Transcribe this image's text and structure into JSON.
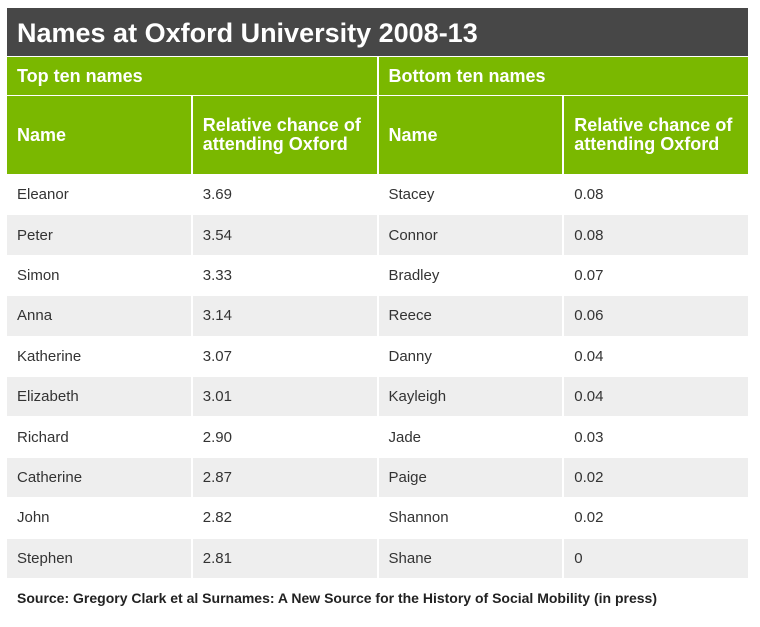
{
  "title": "Names at Oxford University 2008-13",
  "groups": [
    "Top ten names",
    "Bottom ten names"
  ],
  "columns": [
    "Name",
    "Relative chance of attending Oxford",
    "Name",
    "Relative chance of attending Oxford"
  ],
  "rows": [
    [
      "Eleanor",
      "3.69",
      "Stacey",
      "0.08"
    ],
    [
      "Peter",
      "3.54",
      "Connor",
      "0.08"
    ],
    [
      "Simon",
      "3.33",
      "Bradley",
      "0.07"
    ],
    [
      "Anna",
      "3.14",
      "Reece",
      "0.06"
    ],
    [
      "Katherine",
      "3.07",
      "Danny",
      "0.04"
    ],
    [
      "Elizabeth",
      "3.01",
      "Kayleigh",
      "0.04"
    ],
    [
      "Richard",
      "2.90",
      "Jade",
      "0.03"
    ],
    [
      "Catherine",
      "2.87",
      "Paige",
      "0.02"
    ],
    [
      "John",
      "2.82",
      "Shannon",
      "0.02"
    ],
    [
      "Stephen",
      "2.81",
      "Shane",
      "0"
    ]
  ],
  "source": "Source: Gregory Clark et al Surnames: A New Source for the History of Social Mobility (in press)",
  "colors": {
    "title_bg": "#474747",
    "header_bg": "#7ab800",
    "alt_row": "#eeeeee"
  },
  "chart_data": {
    "type": "table",
    "title": "Names at Oxford University 2008-13",
    "top_ten": {
      "names": [
        "Eleanor",
        "Peter",
        "Simon",
        "Anna",
        "Katherine",
        "Elizabeth",
        "Richard",
        "Catherine",
        "John",
        "Stephen"
      ],
      "values": [
        3.69,
        3.54,
        3.33,
        3.14,
        3.07,
        3.01,
        2.9,
        2.87,
        2.82,
        2.81
      ]
    },
    "bottom_ten": {
      "names": [
        "Stacey",
        "Connor",
        "Bradley",
        "Reece",
        "Danny",
        "Kayleigh",
        "Jade",
        "Paige",
        "Shannon",
        "Shane"
      ],
      "values": [
        0.08,
        0.08,
        0.07,
        0.06,
        0.04,
        0.04,
        0.03,
        0.02,
        0.02,
        0
      ]
    }
  }
}
